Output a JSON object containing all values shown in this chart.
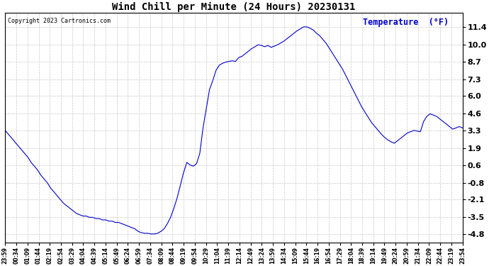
{
  "title": "Wind Chill per Minute (24 Hours) 20230131",
  "copyright": "Copyright 2023 Cartronics.com",
  "legend_label": "Temperature  (°F)",
  "line_color": "#0000cc",
  "background_color": "#ffffff",
  "grid_color": "#c8c8c8",
  "yticks": [
    11.4,
    10.0,
    8.7,
    7.3,
    6.0,
    4.6,
    3.3,
    1.9,
    0.6,
    -0.8,
    -2.1,
    -3.5,
    -4.8
  ],
  "ylim": [
    -5.5,
    12.5
  ],
  "xtick_labels": [
    "23:59",
    "00:34",
    "01:09",
    "01:44",
    "02:19",
    "02:54",
    "03:29",
    "04:04",
    "04:39",
    "05:14",
    "05:49",
    "06:24",
    "06:59",
    "07:34",
    "08:09",
    "08:44",
    "09:19",
    "09:54",
    "10:29",
    "11:04",
    "11:39",
    "12:14",
    "12:49",
    "13:24",
    "13:59",
    "14:34",
    "15:09",
    "15:44",
    "16:19",
    "16:54",
    "17:29",
    "18:04",
    "18:39",
    "19:14",
    "19:49",
    "20:24",
    "20:59",
    "21:34",
    "22:09",
    "22:44",
    "23:19",
    "23:54"
  ],
  "data_y": [
    3.3,
    3.0,
    2.7,
    2.4,
    2.1,
    1.8,
    1.5,
    1.2,
    0.8,
    0.5,
    0.2,
    -0.2,
    -0.5,
    -0.8,
    -1.2,
    -1.5,
    -1.8,
    -2.1,
    -2.4,
    -2.6,
    -2.8,
    -3.0,
    -3.2,
    -3.3,
    -3.4,
    -3.4,
    -3.5,
    -3.5,
    -3.6,
    -3.6,
    -3.7,
    -3.7,
    -3.8,
    -3.8,
    -3.9,
    -3.9,
    -4.0,
    -4.1,
    -4.2,
    -4.3,
    -4.4,
    -4.6,
    -4.7,
    -4.75,
    -4.75,
    -4.8,
    -4.8,
    -4.75,
    -4.6,
    -4.4,
    -4.0,
    -3.5,
    -2.8,
    -2.0,
    -1.0,
    0.0,
    0.8,
    0.6,
    0.5,
    0.7,
    1.5,
    3.5,
    5.0,
    6.5,
    7.2,
    8.0,
    8.4,
    8.55,
    8.65,
    8.7,
    8.75,
    8.7,
    9.0,
    9.1,
    9.3,
    9.5,
    9.7,
    9.85,
    10.0,
    9.95,
    9.85,
    9.95,
    9.8,
    9.9,
    10.0,
    10.15,
    10.3,
    10.5,
    10.7,
    10.9,
    11.1,
    11.25,
    11.4,
    11.4,
    11.3,
    11.15,
    10.9,
    10.7,
    10.4,
    10.1,
    9.7,
    9.3,
    8.9,
    8.5,
    8.1,
    7.6,
    7.1,
    6.6,
    6.1,
    5.6,
    5.1,
    4.7,
    4.3,
    3.9,
    3.6,
    3.3,
    3.0,
    2.75,
    2.55,
    2.4,
    2.3,
    2.5,
    2.7,
    2.9,
    3.1,
    3.2,
    3.3,
    3.25,
    3.2,
    4.0,
    4.4,
    4.6,
    4.5,
    4.4,
    4.2,
    4.0,
    3.8,
    3.6,
    3.4,
    3.5,
    3.6,
    3.5
  ]
}
